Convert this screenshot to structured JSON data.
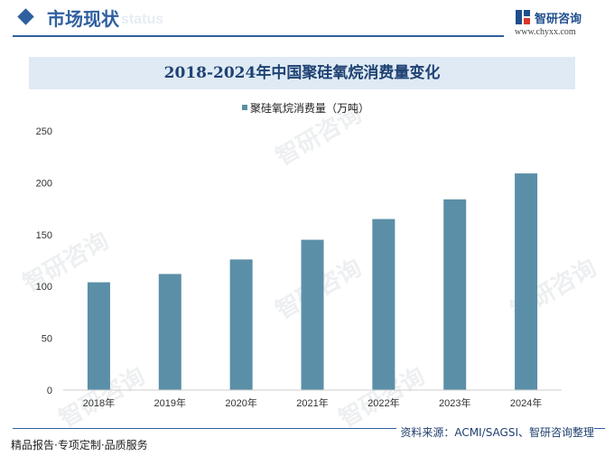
{
  "header": {
    "section_title": "市场现状",
    "section_subtitle": "status",
    "brand_name": "智研咨询",
    "brand_url": "www.chyxx.com"
  },
  "watermark": "智研咨询",
  "chart_data": {
    "type": "bar",
    "title": "2018-2024年中国聚硅氧烷消费量变化",
    "categories": [
      "2018年",
      "2019年",
      "2020年",
      "2021年",
      "2022年",
      "2023年",
      "2024年"
    ],
    "series": [
      {
        "name": "聚硅氧烷消费量（万吨）",
        "values": [
          104,
          112,
          126,
          145,
          165,
          184,
          209
        ]
      }
    ],
    "ylim": [
      0,
      250
    ],
    "yticks": [
      "0",
      "50",
      "100",
      "150",
      "200",
      "250"
    ],
    "xlabel": "",
    "ylabel": "",
    "legend_position": "top-center",
    "grid": false,
    "bar_color": "#5b8fa8"
  },
  "footer": {
    "source": "资料来源：ACMI/SAGSI、智研咨询整理",
    "slogan": "精品报告·专项定制·品质服务"
  }
}
